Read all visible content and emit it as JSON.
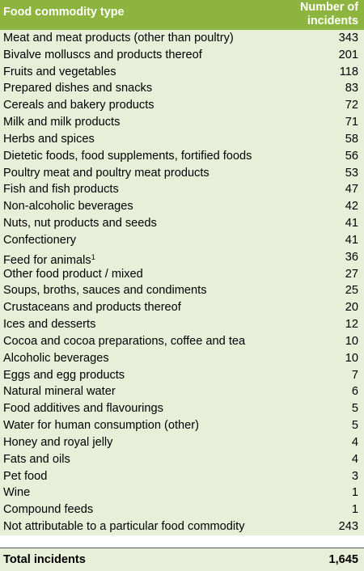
{
  "header": {
    "title": "Food commodity type",
    "count_title": "Number of incidents"
  },
  "table": {
    "rows": [
      {
        "label": "Meat and meat products (other than poultry)",
        "count": 343
      },
      {
        "label": "Bivalve molluscs and products thereof",
        "count": 201
      },
      {
        "label": "Fruits and vegetables",
        "count": 118
      },
      {
        "label": "Prepared dishes and snacks",
        "count": 83
      },
      {
        "label": "Cereals and bakery products",
        "count": 72
      },
      {
        "label": "Milk and milk products",
        "count": 71
      },
      {
        "label": "Herbs and spices",
        "count": 58
      },
      {
        "label": "Dietetic foods, food supplements, fortified foods",
        "count": 56
      },
      {
        "label": "Poultry meat and poultry meat products",
        "count": 53
      },
      {
        "label": "Fish and fish products",
        "count": 47
      },
      {
        "label": "Non-alcoholic beverages",
        "count": 42
      },
      {
        "label": "Nuts, nut products and seeds",
        "count": 41
      },
      {
        "label": "Confectionery",
        "count": 41
      },
      {
        "label": "Feed for animals",
        "note": "1",
        "count": 36
      },
      {
        "label": "Other food product / mixed",
        "count": 27
      },
      {
        "label": "Soups, broths, sauces and condiments",
        "count": 25
      },
      {
        "label": "Crustaceans and products thereof",
        "count": 20
      },
      {
        "label": "Ices and desserts",
        "count": 12
      },
      {
        "label": "Cocoa and cocoa preparations, coffee and tea",
        "count": 10
      },
      {
        "label": "Alcoholic beverages",
        "count": 10
      },
      {
        "label": "Eggs and egg products",
        "count": 7
      },
      {
        "label": "Natural mineral water",
        "count": 6
      },
      {
        "label": "Food additives and flavourings",
        "count": 5
      },
      {
        "label": "Water for human consumption (other)",
        "count": 5
      },
      {
        "label": "Honey and royal jelly",
        "count": 4
      },
      {
        "label": "Fats and oils",
        "count": 4
      },
      {
        "label": "Pet food",
        "count": 3
      },
      {
        "label": "Wine",
        "count": 1
      },
      {
        "label": "Compound feeds",
        "count": 1
      },
      {
        "label": "Not attributable to a particular food commodity",
        "count": 243
      }
    ],
    "total": {
      "label": "Total incidents",
      "count": "1,645"
    }
  }
}
